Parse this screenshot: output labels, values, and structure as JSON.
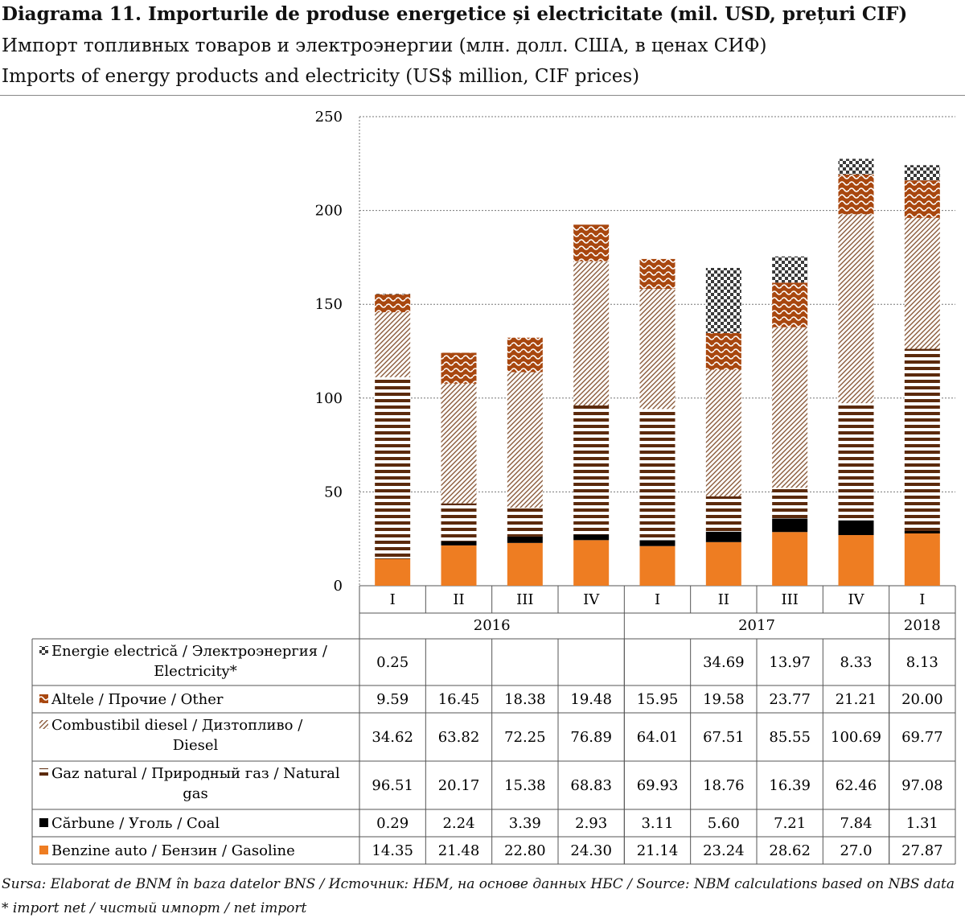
{
  "title": {
    "ro": "Diagrama 11. Importurile de produse energetice și electricitate (mil. USD, prețuri CIF)",
    "ru": "Импорт топливных товаров и электроэнергии (млн. долл. США, в ценах СИФ)",
    "en": "Imports of energy products and electricity (US$ million, CIF prices)"
  },
  "footer": {
    "source": "Sursa: Elaborat de BNM în baza datelor BNS / Источник: НБМ, на основе данных НБС / Source: NBM calculations based on NBS data",
    "note": "* import net / чистый импорт / net import"
  },
  "chart_data": {
    "type": "bar",
    "stacked": true,
    "categories": [
      "I",
      "II",
      "III",
      "IV",
      "I",
      "II",
      "III",
      "IV",
      "I"
    ],
    "years": [
      {
        "label": "2016",
        "span": 4
      },
      {
        "label": "2017",
        "span": 4
      },
      {
        "label": "2018",
        "span": 1
      }
    ],
    "ylim": [
      0,
      250
    ],
    "yticks": [
      "0",
      "50",
      "100",
      "150",
      "200",
      "250"
    ],
    "grid": true,
    "series": [
      {
        "key": "gasoline",
        "name": "Benzine auto / Бензин / Gasoline",
        "legend_lines": [
          "Benzine auto / Бензин / Gasoline"
        ],
        "color": "#ee7d22",
        "pattern": "solid",
        "values": [
          14.35,
          21.48,
          22.8,
          24.3,
          21.14,
          23.24,
          28.62,
          27.0,
          27.87
        ],
        "labels": [
          "14.35",
          "21.48",
          "22.80",
          "24.30",
          "21.14",
          "23.24",
          "28.62",
          "27.0",
          "27.87"
        ]
      },
      {
        "key": "coal",
        "name": "Cărbune / Уголь / Coal",
        "legend_lines": [
          "Cărbune / Уголь / Coal"
        ],
        "color": "#000000",
        "pattern": "solid",
        "values": [
          0.29,
          2.24,
          3.39,
          2.93,
          3.11,
          5.6,
          7.21,
          7.84,
          1.31
        ],
        "labels": [
          "0.29",
          "2.24",
          "3.39",
          "2.93",
          "3.11",
          "5.60",
          "7.21",
          "7.84",
          "1.31"
        ]
      },
      {
        "key": "gas",
        "name": "Gaz natural / Природный газ / Natural gas",
        "legend_lines": [
          "Gaz natural / Природный газ / Natural",
          "gas"
        ],
        "color": "#5b2a0c",
        "pattern": "hstripes",
        "values": [
          96.51,
          20.17,
          15.38,
          68.83,
          69.93,
          18.76,
          16.39,
          62.46,
          97.08
        ],
        "labels": [
          "96.51",
          "20.17",
          "15.38",
          "68.83",
          "69.93",
          "18.76",
          "16.39",
          "62.46",
          "97.08"
        ]
      },
      {
        "key": "diesel",
        "name": "Combustibil diesel / Дизтопливо / Diesel",
        "legend_lines": [
          "Combustibil diesel / Дизтопливо /",
          "Diesel"
        ],
        "color": "#8a5a3a",
        "pattern": "diag",
        "values": [
          34.62,
          63.82,
          72.25,
          76.89,
          64.01,
          67.51,
          85.55,
          100.69,
          69.77
        ],
        "labels": [
          "34.62",
          "63.82",
          "72.25",
          "76.89",
          "64.01",
          "67.51",
          "85.55",
          "100.69",
          "69.77"
        ]
      },
      {
        "key": "other",
        "name": "Altele / Прочие / Other",
        "legend_lines": [
          "Altele / Прочие / Other"
        ],
        "color": "#a8470f",
        "pattern": "wave",
        "values": [
          9.59,
          16.45,
          18.38,
          19.48,
          15.95,
          19.58,
          23.77,
          21.21,
          20.0
        ],
        "labels": [
          "9.59",
          "16.45",
          "18.38",
          "19.48",
          "15.95",
          "19.58",
          "23.77",
          "21.21",
          "20.00"
        ]
      },
      {
        "key": "electricity",
        "name": "Energie electrică / Электроэнергия / Electricity*",
        "legend_lines": [
          "Energie electrică / Электроэнергия /",
          "Electricity*"
        ],
        "color": "#3a3a3a",
        "pattern": "checker",
        "values": [
          0.25,
          0,
          0,
          0,
          0,
          34.69,
          13.97,
          8.33,
          8.13
        ],
        "labels": [
          "0.25",
          "",
          "",
          "",
          "",
          "34.69",
          "13.97",
          "8.33",
          "8.13"
        ]
      }
    ],
    "table_row_order": [
      "electricity",
      "other",
      "diesel",
      "gas",
      "coal",
      "gasoline"
    ]
  }
}
